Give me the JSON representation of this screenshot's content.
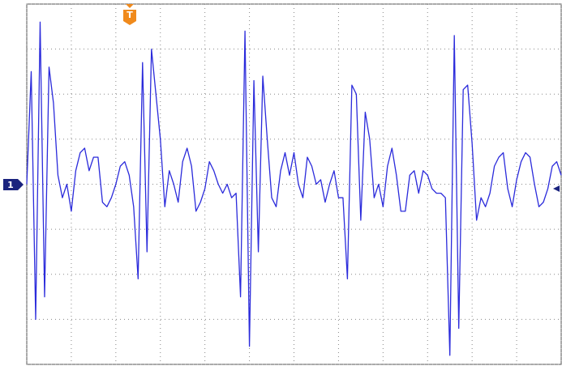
{
  "chart_data": {
    "type": "line",
    "trigger_label": "T",
    "channel_label": "1",
    "xlim": [
      0,
      12
    ],
    "ylim": [
      -4,
      4
    ],
    "xticks": [
      0,
      1,
      2,
      3,
      4,
      5,
      6,
      7,
      8,
      9,
      10,
      11,
      12
    ],
    "yticks": [
      -4,
      -3,
      -2,
      -1,
      0,
      1,
      2,
      3,
      4
    ],
    "grid": true,
    "x": [
      0,
      0.1,
      0.2,
      0.3,
      0.4,
      0.5,
      0.6,
      0.7,
      0.8,
      0.9,
      1,
      1.1,
      1.2,
      1.3,
      1.4,
      1.5,
      1.6,
      1.7,
      1.8,
      1.9,
      2,
      2.1,
      2.2,
      2.3,
      2.4,
      2.5,
      2.6,
      2.7,
      2.8,
      2.9,
      3,
      3.1,
      3.2,
      3.3,
      3.4,
      3.5,
      3.6,
      3.7,
      3.8,
      3.9,
      4,
      4.1,
      4.2,
      4.3,
      4.4,
      4.5,
      4.6,
      4.7,
      4.8,
      4.9,
      5,
      5.1,
      5.2,
      5.3,
      5.4,
      5.5,
      5.6,
      5.7,
      5.8,
      5.9,
      6,
      6.1,
      6.2,
      6.3,
      6.4,
      6.5,
      6.6,
      6.7,
      6.8,
      6.9,
      7,
      7.1,
      7.2,
      7.3,
      7.4,
      7.5,
      7.6,
      7.7,
      7.8,
      7.9,
      8,
      8.1,
      8.2,
      8.3,
      8.4,
      8.5,
      8.6,
      8.7,
      8.8,
      8.9,
      9,
      9.1,
      9.2,
      9.3,
      9.4,
      9.5,
      9.6,
      9.7,
      9.8,
      9.9,
      10,
      10.1,
      10.2,
      10.3,
      10.4,
      10.5,
      10.6,
      10.7,
      10.8,
      10.9,
      11,
      11.1,
      11.2,
      11.3,
      11.4,
      11.5,
      11.6,
      11.7,
      11.8,
      11.9,
      12
    ],
    "series": [
      {
        "color": "#2b2bdb",
        "values": [
          0.0,
          2.5,
          -3.0,
          3.6,
          -2.5,
          2.6,
          1.8,
          0.2,
          -0.3,
          0.0,
          -0.6,
          0.3,
          0.7,
          0.8,
          0.3,
          0.6,
          0.6,
          -0.4,
          -0.5,
          -0.3,
          0.0,
          0.4,
          0.5,
          0.2,
          -0.5,
          -2.1,
          2.7,
          -1.5,
          3.0,
          2.0,
          1.0,
          -0.5,
          0.3,
          0.0,
          -0.4,
          0.5,
          0.8,
          0.4,
          -0.6,
          -0.4,
          -0.1,
          0.5,
          0.3,
          0.0,
          -0.2,
          0.0,
          -0.3,
          -0.2,
          -2.5,
          3.4,
          -3.6,
          2.3,
          -1.5,
          2.4,
          1.0,
          -0.3,
          -0.5,
          0.3,
          0.7,
          0.2,
          0.7,
          0.0,
          -0.3,
          0.6,
          0.4,
          0.0,
          0.1,
          -0.4,
          0.0,
          0.3,
          -0.3,
          -0.3,
          -2.1,
          2.2,
          2.0,
          -0.8,
          1.6,
          1.0,
          -0.3,
          0.0,
          -0.5,
          0.4,
          0.8,
          0.2,
          -0.6,
          -0.6,
          0.2,
          0.3,
          -0.2,
          0.3,
          0.2,
          -0.1,
          -0.2,
          -0.2,
          -0.3,
          -3.8,
          3.3,
          -3.2,
          2.1,
          2.2,
          0.9,
          -0.8,
          -0.3,
          -0.5,
          -0.2,
          0.4,
          0.6,
          0.7,
          -0.1,
          -0.5,
          0.1,
          0.5,
          0.7,
          0.6,
          0.0,
          -0.5,
          -0.4,
          -0.1,
          0.4,
          0.5,
          0.2
        ]
      }
    ]
  }
}
